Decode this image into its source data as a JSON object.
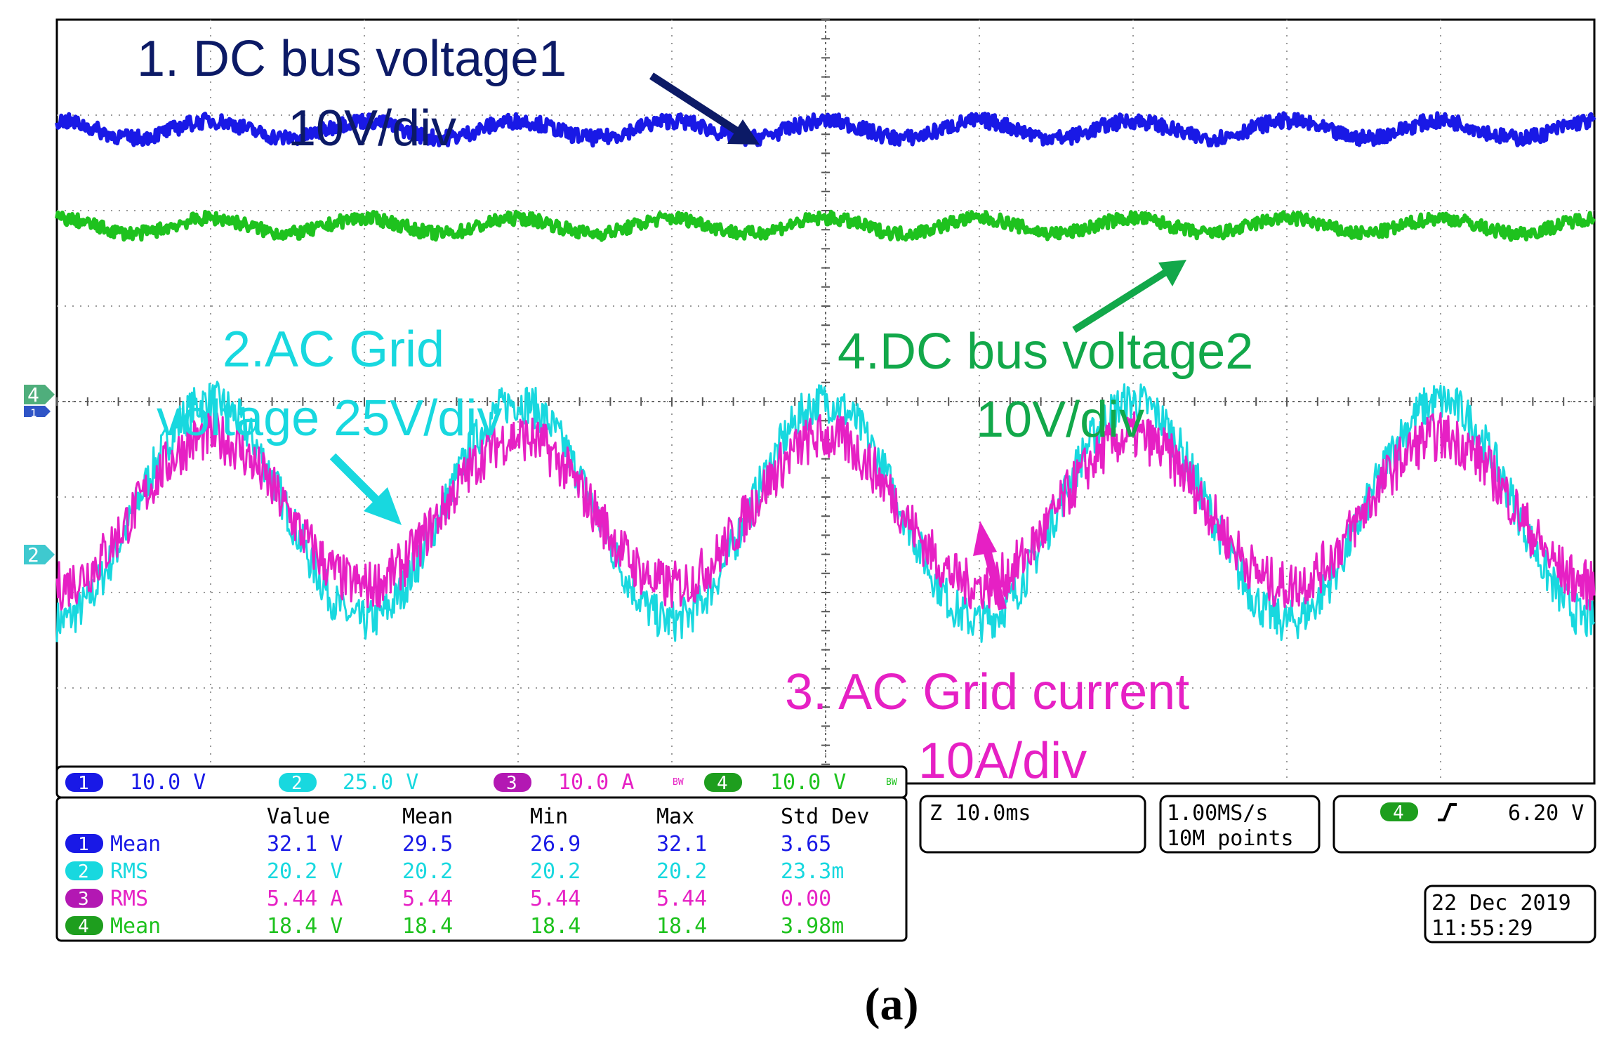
{
  "chart_data": {
    "type": "line",
    "title": "",
    "x_axis": {
      "divisions": 10,
      "time_per_div": "10.0ms",
      "span_ms": [
        0,
        100
      ]
    },
    "y_axis": {
      "divisions": 8,
      "grid": true
    },
    "colors": {
      "ch1": "#1919e6",
      "ch2": "#18d8df",
      "ch3": "#e620c4",
      "ch4": "#1ec21e"
    },
    "series": [
      {
        "name": "1. DC bus voltage1",
        "channel": 1,
        "scale": "10.0 V",
        "level_div": 2.85,
        "ripple_div": 0.09,
        "ripple_hz": 100,
        "noise_div": 0.08
      },
      {
        "name": "4.DC bus voltage2",
        "channel": 4,
        "scale": "10.0 V",
        "level_div": 1.84,
        "ripple_div": 0.08,
        "ripple_hz": 100,
        "noise_div": 0.07
      },
      {
        "name": "2.AC Grid voltage",
        "channel": 2,
        "scale": "25.0 V",
        "offset_div": -1.15,
        "amplitude_div": 1.15,
        "freq_hz": 50,
        "phase_deg": 0,
        "noise_div": 0.22
      },
      {
        "name": "3. AC Grid current",
        "channel": 3,
        "scale": "10.0 A",
        "offset_div": -1.15,
        "amplitude_div": 0.78,
        "freq_hz": 50,
        "phase_deg": 0,
        "noise_div": 0.26
      }
    ],
    "annotations": [
      {
        "id": "ch1",
        "lines": [
          "1. DC bus voltage1",
          "10V/div"
        ],
        "color": "#0c1a66"
      },
      {
        "id": "ch2",
        "lines": [
          "2.AC Grid",
          "voltage 25V/div"
        ],
        "color": "#18d8df"
      },
      {
        "id": "ch4",
        "lines": [
          "4.DC bus voltage2",
          "10V/div"
        ],
        "color": "#12a84a"
      },
      {
        "id": "ch3",
        "lines": [
          "3. AC Grid current",
          "10A/div"
        ],
        "color": "#e620c4"
      }
    ],
    "channel_markers": [
      "4",
      "1",
      "2"
    ],
    "scale_bar": [
      {
        "ch": "1",
        "value": "10.0 V",
        "bw": false
      },
      {
        "ch": "2",
        "value": "25.0 V",
        "bw": false
      },
      {
        "ch": "3",
        "value": "10.0 A",
        "bw": true
      },
      {
        "ch": "4",
        "value": "10.0 V",
        "bw": true
      }
    ],
    "bw_label": "BW",
    "measurements": {
      "headers": [
        "Value",
        "Mean",
        "Min",
        "Max",
        "Std Dev"
      ],
      "rows": [
        {
          "ch": "1",
          "type": "Mean",
          "value": "32.1 V",
          "mean": "29.5",
          "min": "26.9",
          "max": "32.1",
          "std": "3.65"
        },
        {
          "ch": "2",
          "type": "RMS",
          "value": "20.2 V",
          "mean": "20.2",
          "min": "20.2",
          "max": "20.2",
          "std": "23.3m"
        },
        {
          "ch": "3",
          "type": "RMS",
          "value": "5.44 A",
          "mean": "5.44",
          "min": "5.44",
          "max": "5.44",
          "std": "0.00"
        },
        {
          "ch": "4",
          "type": "Mean",
          "value": "18.4 V",
          "mean": "18.4",
          "min": "18.4",
          "max": "18.4",
          "std": "3.98m"
        }
      ]
    },
    "timebase": "Z 10.0ms",
    "sample_rate": "1.00MS/s",
    "record_length": "10M points",
    "trigger": {
      "ch": "4",
      "level": "6.20 V"
    },
    "date": "22 Dec 2019",
    "time": "11:55:29",
    "caption": "(a)"
  }
}
